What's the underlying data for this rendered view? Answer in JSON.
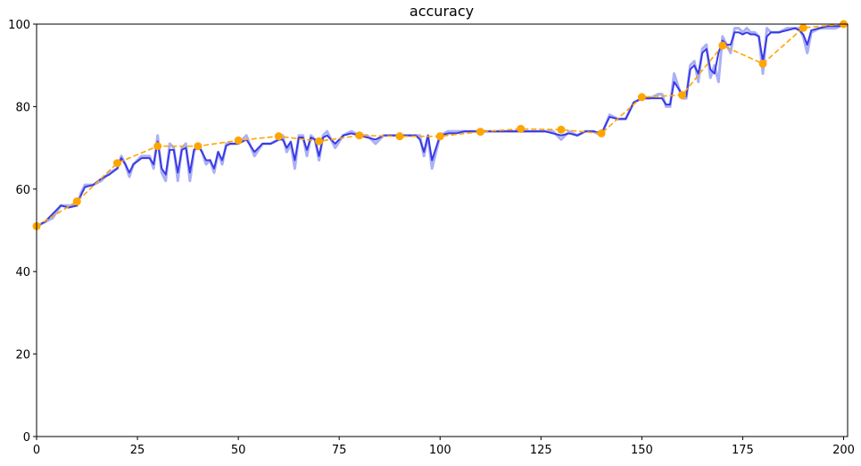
{
  "chart_data": {
    "type": "line",
    "title": "accuracy",
    "xlabel": "",
    "ylabel": "",
    "xlim": [
      0,
      201
    ],
    "ylim": [
      0,
      100
    ],
    "xticks": [
      0,
      25,
      50,
      75,
      100,
      125,
      150,
      175,
      200
    ],
    "yticks": [
      0,
      20,
      40,
      60,
      80,
      100
    ],
    "grid": false,
    "series": [
      {
        "style": "raw",
        "color": "#aab0f5",
        "x": [
          0,
          2,
          4,
          6,
          8,
          10,
          11,
          12,
          14,
          16,
          18,
          20,
          21,
          22,
          23,
          24,
          26,
          28,
          29,
          30,
          31,
          32,
          33,
          34,
          35,
          36,
          37,
          38,
          39,
          40,
          41,
          42,
          43,
          44,
          45,
          46,
          47,
          48,
          50,
          52,
          54,
          56,
          58,
          60,
          61,
          62,
          63,
          64,
          65,
          66,
          67,
          68,
          69,
          70,
          71,
          72,
          74,
          76,
          78,
          80,
          82,
          84,
          86,
          88,
          90,
          92,
          94,
          95,
          96,
          97,
          98,
          100,
          102,
          104,
          106,
          108,
          110,
          112,
          114,
          116,
          118,
          120,
          122,
          124,
          126,
          128,
          130,
          132,
          134,
          136,
          138,
          140,
          142,
          144,
          146,
          148,
          150,
          152,
          154,
          155,
          156,
          157,
          158,
          160,
          161,
          162,
          163,
          164,
          165,
          166,
          167,
          168,
          169,
          170,
          171,
          172,
          173,
          174,
          175,
          176,
          177,
          178,
          179,
          180,
          181,
          182,
          184,
          186,
          188,
          189,
          190,
          191,
          192,
          194,
          196,
          198,
          200
        ],
        "y": [
          51,
          52,
          53,
          56,
          56,
          56,
          59,
          61,
          61,
          62,
          64,
          65,
          68,
          66,
          63,
          66,
          68,
          68,
          65,
          73,
          64,
          62,
          71,
          70,
          62,
          70,
          71,
          62,
          69,
          71,
          69,
          66,
          67,
          64,
          69,
          66,
          71,
          71,
          71,
          73,
          68,
          71,
          71,
          72,
          73,
          69,
          71,
          65,
          73,
          73,
          68,
          73,
          72,
          67,
          73,
          74,
          70,
          73,
          74,
          73,
          73,
          71,
          73,
          73,
          73,
          73,
          73,
          73,
          68,
          73,
          65,
          73,
          74,
          74,
          74,
          74,
          74,
          74,
          74,
          74,
          74,
          74,
          74,
          74,
          74,
          74,
          72,
          74,
          73,
          74,
          74,
          73,
          78,
          77,
          77,
          81,
          82,
          82,
          83,
          83,
          80,
          80,
          88,
          82,
          82,
          90,
          91,
          86,
          94,
          95,
          87,
          90,
          86,
          97,
          95,
          93,
          99,
          99,
          98,
          99,
          98,
          98,
          97,
          88,
          99,
          98,
          98,
          99,
          99,
          99,
          97,
          93,
          98,
          99,
          99,
          99,
          100
        ]
      },
      {
        "style": "smoothed",
        "color": "#3a3ae6",
        "x": [
          0,
          2,
          4,
          6,
          8,
          10,
          11,
          12,
          14,
          16,
          18,
          20,
          21,
          22,
          23,
          24,
          26,
          28,
          29,
          30,
          31,
          32,
          33,
          34,
          35,
          36,
          37,
          38,
          39,
          40,
          41,
          42,
          43,
          44,
          45,
          46,
          47,
          48,
          50,
          52,
          54,
          56,
          58,
          60,
          61,
          62,
          63,
          64,
          65,
          66,
          67,
          68,
          69,
          70,
          71,
          72,
          74,
          76,
          78,
          80,
          82,
          84,
          86,
          88,
          90,
          92,
          94,
          95,
          96,
          97,
          98,
          100,
          102,
          104,
          106,
          108,
          110,
          112,
          114,
          116,
          118,
          120,
          122,
          124,
          126,
          128,
          130,
          132,
          134,
          136,
          138,
          140,
          142,
          144,
          146,
          148,
          150,
          152,
          154,
          155,
          156,
          157,
          158,
          160,
          161,
          162,
          163,
          164,
          165,
          166,
          167,
          168,
          169,
          170,
          171,
          172,
          173,
          174,
          175,
          176,
          177,
          178,
          179,
          180,
          181,
          182,
          184,
          186,
          188,
          189,
          190,
          191,
          192,
          194,
          196,
          198,
          200
        ],
        "y": [
          51,
          52,
          54,
          56,
          55.5,
          56,
          58.5,
          60.5,
          61,
          62.5,
          63.5,
          65,
          67.5,
          66,
          64,
          66,
          67.5,
          67.5,
          66,
          71.5,
          65,
          63.5,
          69.5,
          69.5,
          64,
          69.5,
          70,
          64,
          69.5,
          70.5,
          69,
          67,
          67,
          65,
          69,
          67,
          70.5,
          71,
          71,
          72,
          69,
          71,
          71,
          72,
          72,
          70,
          71.5,
          67,
          72.5,
          72.5,
          69.5,
          72.5,
          72,
          68,
          72.5,
          73,
          71,
          73,
          73.5,
          73,
          72.5,
          72,
          73,
          73,
          73,
          73,
          73,
          72,
          69,
          73,
          67,
          73,
          73.5,
          73.5,
          74,
          74,
          74,
          74,
          74,
          74,
          74,
          74,
          74,
          74,
          74,
          73.5,
          73,
          73.5,
          73,
          74,
          74,
          73.5,
          77.5,
          77,
          77,
          81,
          82,
          82,
          82,
          82,
          80.5,
          80.5,
          86,
          83,
          82.5,
          89,
          90,
          88,
          93,
          94,
          89,
          88,
          93,
          96,
          95,
          95,
          98,
          98,
          97.5,
          98,
          97.5,
          97.5,
          97,
          91,
          97,
          98,
          98,
          98.5,
          99,
          98.5,
          97.5,
          95,
          98.5,
          99,
          99.5,
          99.5,
          99.5
        ]
      },
      {
        "style": "checkpoints",
        "color": "#ffa500",
        "x": [
          0,
          10,
          20,
          30,
          40,
          50,
          60,
          70,
          80,
          90,
          100,
          110,
          120,
          130,
          140,
          150,
          160,
          170,
          180,
          190,
          200
        ],
        "y": [
          51,
          57,
          66.3,
          70.4,
          70.4,
          71.8,
          72.8,
          71.6,
          73,
          72.8,
          72.8,
          73.9,
          74.6,
          74.4,
          73.5,
          82.3,
          82.8,
          94.8,
          90.4,
          99.1,
          100
        ]
      }
    ]
  }
}
